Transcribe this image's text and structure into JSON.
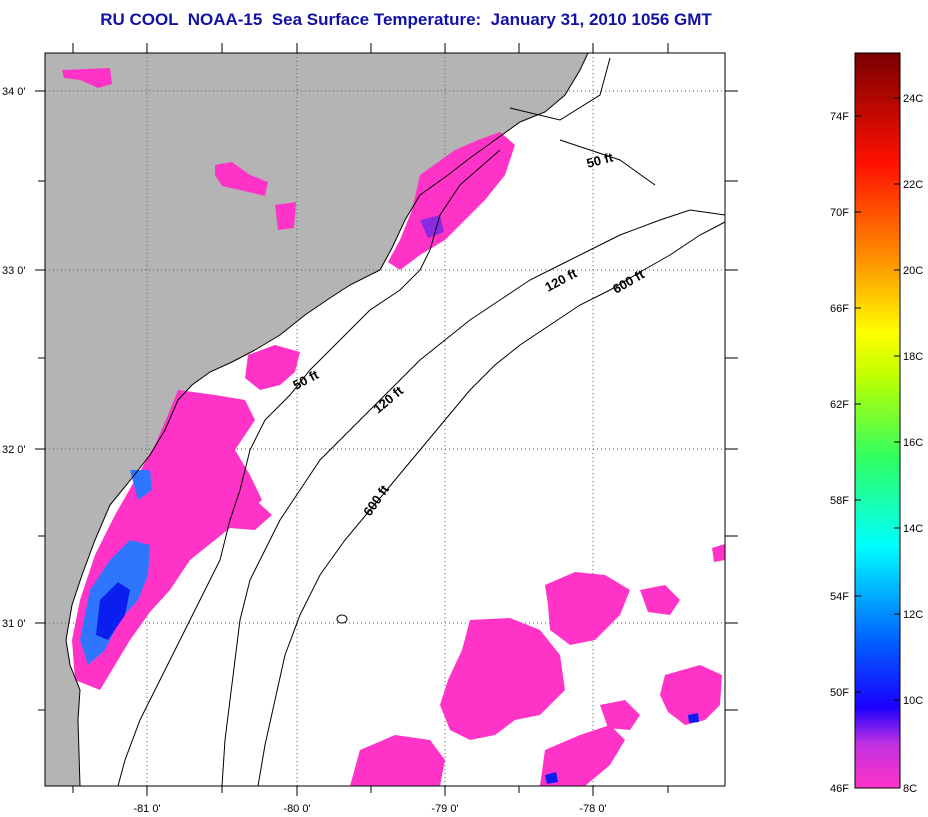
{
  "title": "RU COOL  NOAA-15  Sea Surface Temperature:  January 31, 2010 1056 GMT",
  "map": {
    "lat_labels": [
      "34 0'",
      "33 0'",
      "32 0'",
      "31 0'"
    ],
    "lon_labels": [
      "-81 0'",
      "-80 0'",
      "-79 0'",
      "-78 0'"
    ],
    "contour_labels": [
      "50 ft",
      "50 ft",
      "120 ft",
      "120 ft",
      "600 ft",
      "600 ft"
    ],
    "colors": {
      "land": "#b4b4b4",
      "sst_8c": "#ff33c8",
      "sst_10c": "#0a1ef0",
      "sst_12c": "#2f76ff",
      "grid": "#555555"
    }
  },
  "colorbar": {
    "fahrenheit_labels": [
      "74F",
      "70F",
      "66F",
      "62F",
      "58F",
      "54F",
      "50F",
      "46F"
    ],
    "celsius_labels": [
      "24C",
      "22C",
      "20C",
      "18C",
      "16C",
      "14C",
      "12C",
      "10C",
      "8C"
    ],
    "stops": [
      "#ff33c8",
      "#8a2be2",
      "#0000ff",
      "#0080ff",
      "#00ffff",
      "#00ff80",
      "#ffff00",
      "#ff8000",
      "#ff0000",
      "#800000"
    ]
  }
}
